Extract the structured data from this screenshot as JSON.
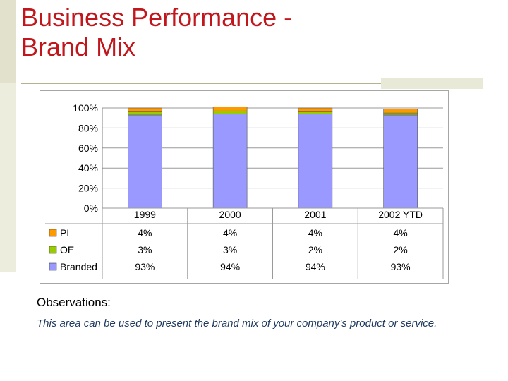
{
  "slide": {
    "title_line1": "Business Performance -",
    "title_line2": "Brand Mix",
    "observations_title": "Observations:",
    "observations_body": "This area can be used to present the brand mix of your company's product or service."
  },
  "chart_data": {
    "type": "bar",
    "stacked": true,
    "percent": true,
    "categories": [
      "1999",
      "2000",
      "2001",
      "2002 YTD"
    ],
    "series": [
      {
        "name": "Branded",
        "values": [
          93,
          94,
          94,
          93
        ],
        "labels": [
          "93%",
          "94%",
          "94%",
          "93%"
        ],
        "color": "#9999ff"
      },
      {
        "name": "OE",
        "values": [
          3,
          3,
          2,
          2
        ],
        "labels": [
          "3%",
          "3%",
          "2%",
          "2%"
        ],
        "color": "#99cc00"
      },
      {
        "name": "PL",
        "values": [
          4,
          4,
          4,
          4
        ],
        "labels": [
          "4%",
          "4%",
          "4%",
          "4%"
        ],
        "color": "#ff9900"
      }
    ],
    "table_order": [
      "PL",
      "OE",
      "Branded"
    ],
    "yticks": [
      "0%",
      "20%",
      "40%",
      "60%",
      "80%",
      "100%"
    ],
    "ylim": [
      0,
      100
    ],
    "grid": true,
    "legend": "data table below chart"
  }
}
